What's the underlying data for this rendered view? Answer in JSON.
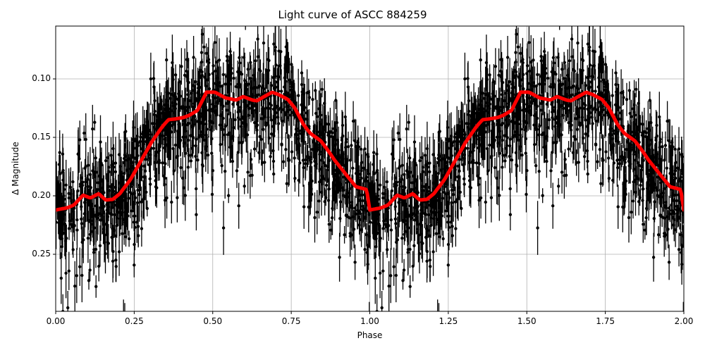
{
  "chart_data": {
    "type": "scatter",
    "title": "Light curve of ASCC 884259",
    "xlabel": "Phase",
    "ylabel": "Δ Magnitude",
    "xlim": [
      0.0,
      2.0
    ],
    "ylim": [
      0.2988,
      0.0548
    ],
    "y_inverted": true,
    "grid": true,
    "legend": null,
    "xticks": [
      "0.00",
      "0.25",
      "0.50",
      "0.75",
      "1.00",
      "1.25",
      "1.50",
      "1.75",
      "2.00"
    ],
    "xtick_values": [
      0.0,
      0.25,
      0.5,
      0.75,
      1.0,
      1.25,
      1.5,
      1.75,
      2.0
    ],
    "yticks": [
      "0.10",
      "0.15",
      "0.20",
      "0.25"
    ],
    "ytick_values": [
      0.1,
      0.15,
      0.2,
      0.25
    ],
    "series": [
      {
        "name": "observations",
        "kind": "errorbar-scatter",
        "color": "#000000",
        "description": "Dense black data points with vertical error bars, folded twice over phase 0–2; scatter band roughly ±0.06 mag around model, error bars ~0.01–0.03 mag",
        "envelope_upper": [
          [
            0.0,
            0.17
          ],
          [
            0.25,
            0.12
          ],
          [
            0.5,
            0.065
          ],
          [
            0.75,
            0.09
          ],
          [
            1.0,
            0.17
          ],
          [
            1.25,
            0.12
          ],
          [
            1.5,
            0.065
          ],
          [
            1.75,
            0.09
          ],
          [
            2.0,
            0.17
          ]
        ],
        "envelope_lower": [
          [
            0.0,
            0.29
          ],
          [
            0.25,
            0.27
          ],
          [
            0.5,
            0.24
          ],
          [
            0.75,
            0.27
          ],
          [
            1.0,
            0.3
          ],
          [
            1.25,
            0.27
          ],
          [
            1.5,
            0.24
          ],
          [
            1.75,
            0.27
          ],
          [
            2.0,
            0.29
          ]
        ]
      },
      {
        "name": "binned model",
        "kind": "line",
        "color": "#ff0000",
        "linewidth": 5,
        "x": [
          0.0,
          0.036,
          0.058,
          0.087,
          0.11,
          0.137,
          0.159,
          0.182,
          0.204,
          0.238,
          0.272,
          0.305,
          0.339,
          0.359,
          0.379,
          0.406,
          0.424,
          0.451,
          0.48,
          0.507,
          0.541,
          0.575,
          0.597,
          0.626,
          0.641,
          0.664,
          0.689,
          0.709,
          0.739,
          0.761,
          0.788,
          0.81,
          0.844,
          0.866,
          0.889,
          0.923,
          0.956,
          0.99,
          1.024,
          1.068,
          1.091,
          1.136,
          1.17,
          1.214,
          1.259,
          1.293,
          1.331,
          1.371,
          1.416
        ],
        "y": [
          0.2121,
          0.2103,
          0.2079,
          0.1994,
          0.2018,
          0.1982,
          0.2036,
          0.203,
          0.1982,
          0.1861,
          0.1699,
          0.1542,
          0.141,
          0.1349,
          0.1343,
          0.1331,
          0.1313,
          0.1271,
          0.1114,
          0.1114,
          0.1163,
          0.1181,
          0.1151,
          0.1181,
          0.1187,
          0.1151,
          0.1114,
          0.1133,
          0.1175,
          0.1247,
          0.1386,
          0.1464,
          0.153,
          0.1608,
          0.1699,
          0.1813,
          0.1922,
          0.1946,
          0.1916,
          0.1892,
          0.1982,
          0.1994,
          0.1916,
          0.1759,
          0.153,
          0.1361,
          0.1337,
          0.1295,
          0.1114
        ],
        "mirrored_period": 1.0
      }
    ]
  }
}
